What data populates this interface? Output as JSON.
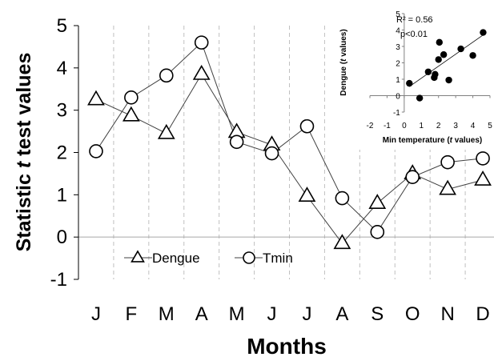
{
  "chart_data": [
    {
      "type": "line",
      "categories": [
        "J",
        "F",
        "M",
        "A",
        "M",
        "J",
        "J",
        "A",
        "S",
        "O",
        "N",
        "D"
      ],
      "series": [
        {
          "name": "Dengue",
          "marker": "triangle",
          "values": [
            3.25,
            2.87,
            2.45,
            3.85,
            2.48,
            2.18,
            0.97,
            -0.15,
            0.8,
            1.5,
            1.13,
            1.35
          ]
        },
        {
          "name": "Tmin",
          "marker": "circle",
          "values": [
            2.03,
            3.3,
            3.82,
            4.6,
            2.25,
            1.98,
            2.62,
            0.92,
            0.12,
            1.42,
            1.77,
            1.86
          ]
        }
      ],
      "xlabel": "Months",
      "ylabel_parts": [
        "Statistic ",
        "t",
        " test values"
      ],
      "ylim": [
        -1,
        5
      ],
      "yticks": [
        "-1",
        "0",
        "1",
        "2",
        "3",
        "4",
        "5"
      ],
      "grid": "vertical dashed",
      "legend": "bottom-left",
      "colors": {
        "line": "#404040",
        "marker_stroke": "#000000",
        "marker_fill": "#ffffff",
        "grid": "#c0c0c0",
        "baseline": "#a6a6a6"
      }
    },
    {
      "type": "scatter",
      "points": [
        {
          "x": 0.3,
          "y": 0.75
        },
        {
          "x": 0.9,
          "y": -0.15
        },
        {
          "x": 1.4,
          "y": 1.45
        },
        {
          "x": 1.75,
          "y": 1.1
        },
        {
          "x": 1.8,
          "y": 1.3
        },
        {
          "x": 2.0,
          "y": 2.2
        },
        {
          "x": 2.05,
          "y": 3.25
        },
        {
          "x": 2.3,
          "y": 2.5
        },
        {
          "x": 2.6,
          "y": 0.95
        },
        {
          "x": 3.3,
          "y": 2.85
        },
        {
          "x": 4.0,
          "y": 2.45
        },
        {
          "x": 4.6,
          "y": 3.85
        }
      ],
      "trendline": {
        "x": [
          0.3,
          4.6
        ],
        "y": [
          0.55,
          3.7
        ]
      },
      "annotations": [
        "R² = 0.56",
        "p<0.01"
      ],
      "xlabel_parts": [
        "Min temperature (",
        "t",
        " values)"
      ],
      "ylabel_parts": [
        "Dengue (",
        "t",
        " values)"
      ],
      "xlim": [
        -2,
        5
      ],
      "ylim": [
        -1,
        5
      ],
      "xticks": [
        "-2",
        "-1",
        "0",
        "1",
        "2",
        "3",
        "4",
        "5"
      ],
      "yticks": [
        "-1",
        "0",
        "1",
        "2",
        "3",
        "4",
        "5"
      ],
      "colors": {
        "point": "#000000",
        "trendline": "#000000",
        "axis": "#808080"
      }
    }
  ]
}
